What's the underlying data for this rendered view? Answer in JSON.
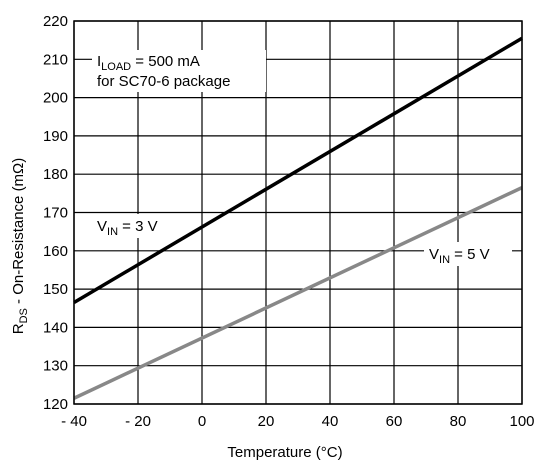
{
  "chart_data": {
    "type": "line",
    "xlabel": "Temperature (°C)",
    "ylabel_main": "R",
    "ylabel_sub": "DS",
    "ylabel_rest": " - On-Resistance (mΩ)",
    "xlim": [
      -40,
      100
    ],
    "ylim": [
      120,
      220
    ],
    "x_ticks": [
      -40,
      -20,
      0,
      20,
      40,
      60,
      80,
      100
    ],
    "x_tick_labels": [
      "- 40",
      "- 20",
      "0",
      "20",
      "40",
      "60",
      "80",
      "100"
    ],
    "y_ticks": [
      120,
      130,
      140,
      150,
      160,
      170,
      180,
      190,
      200,
      210,
      220
    ],
    "y_tick_labels": [
      "120",
      "130",
      "140",
      "150",
      "160",
      "170",
      "180",
      "190",
      "200",
      "210",
      "220"
    ],
    "grid": true,
    "series": [
      {
        "name_main": "V",
        "name_sub": "IN",
        "name_rest": " = 3 V",
        "color": "#000000",
        "x": [
          -40,
          100
        ],
        "y": [
          146.5,
          215.5
        ]
      },
      {
        "name_main": "V",
        "name_sub": "IN",
        "name_rest": " = 5 V",
        "color": "#888888",
        "x": [
          -40,
          100
        ],
        "y": [
          121.5,
          176.5
        ]
      }
    ],
    "annotation": {
      "line1_main": "I",
      "line1_sub": "LOAD",
      "line1_rest": " = 500 mA",
      "line2": "for SC70-6 package"
    }
  }
}
